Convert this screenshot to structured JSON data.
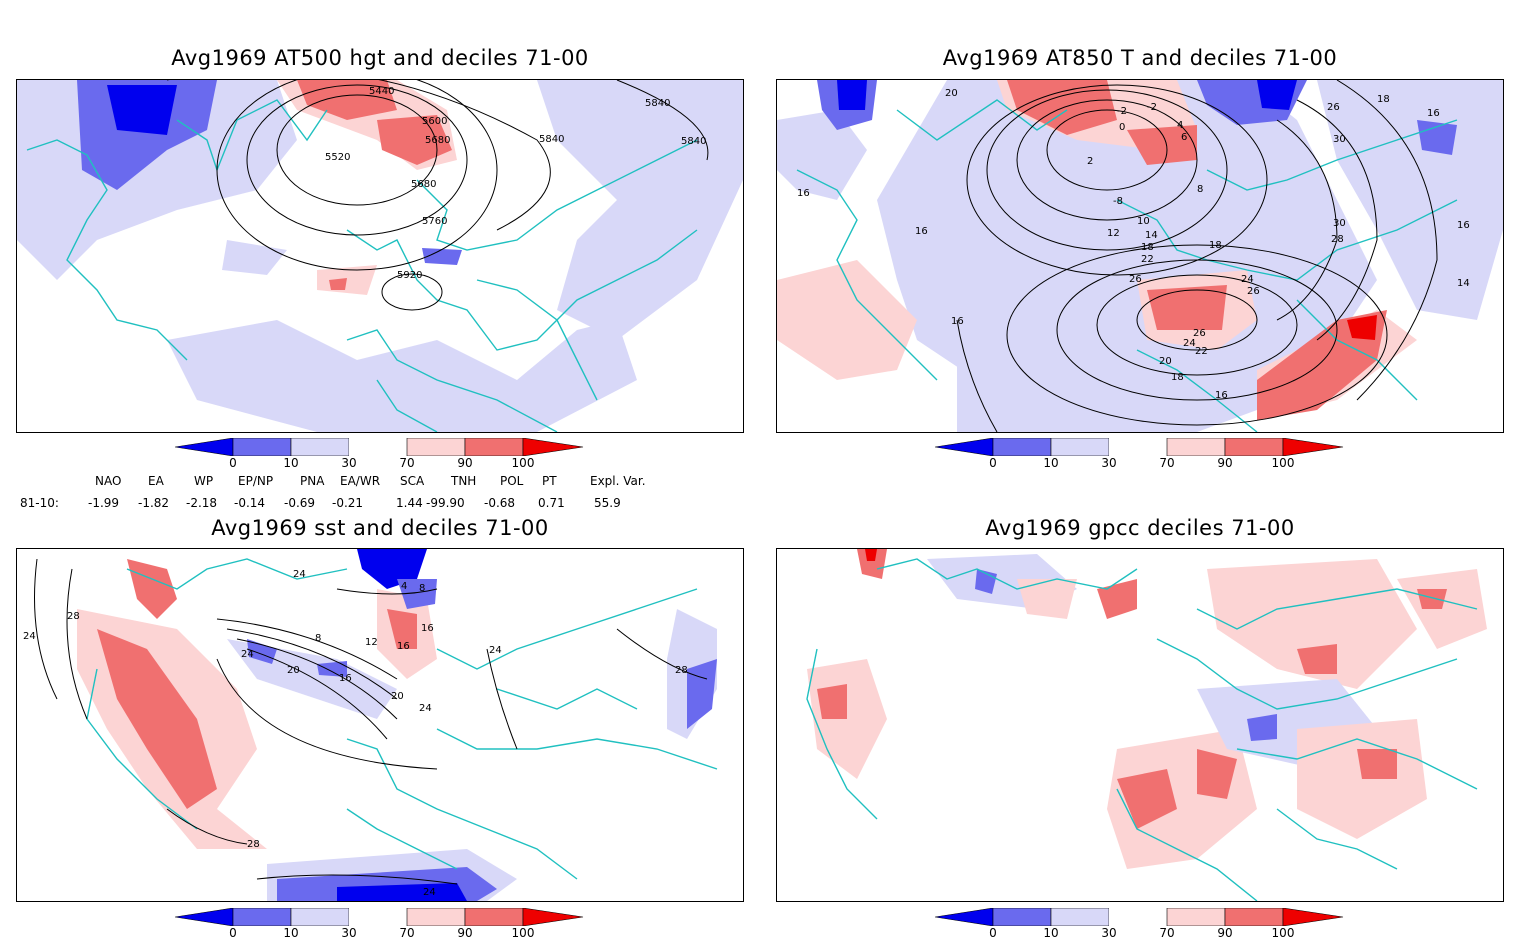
{
  "panels": [
    {
      "title": "Avg1969 AT500 hgt and deciles 71-00",
      "contour_labels": [
        "5440",
        "5600",
        "5680",
        "5520",
        "5680",
        "5840",
        "5840",
        "5840",
        "5760",
        "5920"
      ]
    },
    {
      "title": "Avg1969 AT850 T and deciles 71-00",
      "contour_labels": [
        "20",
        "-2",
        "-2",
        "26",
        "18",
        "16",
        "0",
        "4",
        "6",
        "2",
        "30",
        "16",
        "-8",
        "8",
        "10",
        "12",
        "14",
        "16",
        "18",
        "22",
        "30",
        "28",
        "16",
        "18",
        "24",
        "26",
        "26",
        "26",
        "24",
        "22",
        "20",
        "18",
        "16",
        "16",
        "14"
      ]
    },
    {
      "title": "Avg1969 sst and deciles 71-00",
      "contour_labels": [
        "24",
        "28",
        "24",
        "4",
        "8",
        "8",
        "12",
        "16",
        "16",
        "20",
        "24",
        "24",
        "20",
        "16",
        "24",
        "28",
        "28",
        "24"
      ]
    },
    {
      "title": "Avg1969 gpcc deciles 71-00",
      "contour_labels": []
    }
  ],
  "colorbar": {
    "tick_labels": [
      "0",
      "10",
      "30",
      "70",
      "90",
      "100"
    ],
    "colors": [
      "#0000ee",
      "#6a6aee",
      "#d8d8f8",
      "#ffffff",
      "#fcd4d4",
      "#f07070",
      "#ee0000"
    ]
  },
  "teleconnections": {
    "headers": [
      "NAO",
      "EA",
      "WP",
      "EP/NP",
      "PNA",
      "EA/WR",
      "SCA",
      "TNH",
      "POL",
      "PT",
      "Expl. Var."
    ],
    "row_label": "81-10:",
    "values": [
      "-1.99",
      "-1.82",
      "-2.18",
      "-0.14",
      "-0.69",
      "-0.21",
      "1.44",
      "-99.90",
      "-0.68",
      "0.71",
      "55.9"
    ]
  },
  "colors": {
    "coast": "#20c0c0",
    "contour": "#000000",
    "dark_blue": "#0000ee",
    "mid_blue": "#6a6aee",
    "light_blue": "#d8d8f8",
    "light_red": "#fcd4d4",
    "mid_red": "#f07070",
    "dark_red": "#ee0000"
  }
}
